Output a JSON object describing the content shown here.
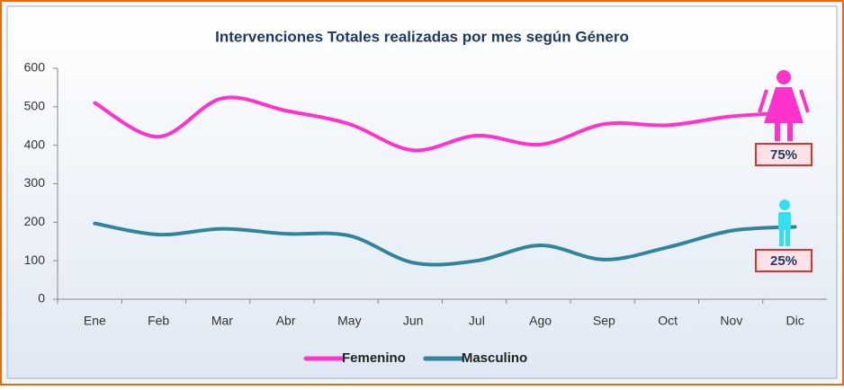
{
  "chart_data": {
    "type": "line",
    "title": "Intervenciones Totales realizadas por mes según Género",
    "categories": [
      "Ene",
      "Feb",
      "Mar",
      "Abr",
      "May",
      "Jun",
      "Jul",
      "Ago",
      "Sep",
      "Oct",
      "Nov",
      "Dic"
    ],
    "series": [
      {
        "name": "Femenino",
        "color": "#ff33cc",
        "values": [
          510,
          422,
          522,
          490,
          455,
          387,
          425,
          402,
          455,
          452,
          475,
          485
        ]
      },
      {
        "name": "Masculino",
        "color": "#31849b",
        "values": [
          197,
          168,
          183,
          170,
          165,
          95,
          100,
          140,
          103,
          135,
          178,
          188
        ]
      }
    ],
    "ylim": [
      0,
      600
    ],
    "yticks": [
      0,
      100,
      200,
      300,
      400,
      500,
      600
    ],
    "annotations": [
      "75%",
      "25%"
    ],
    "legend": "bottom"
  }
}
